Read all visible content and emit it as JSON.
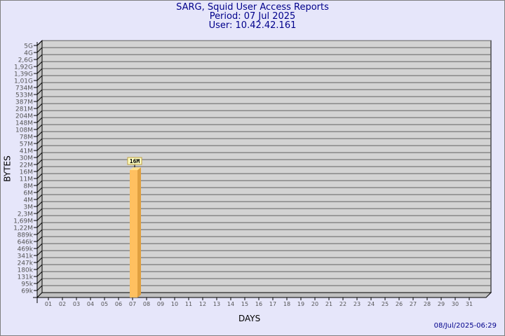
{
  "header": {
    "title": "SARG, Squid User Access Reports",
    "period": "Period: 07 Jul 2025",
    "user": "User: 10.42.42.161"
  },
  "footer": {
    "timestamp": "08/Jul/2025-06:29"
  },
  "chart_data": {
    "type": "bar",
    "title": "SARG, Squid User Access Reports",
    "xlabel": "DAYS",
    "ylabel": "BYTES",
    "y_scale": "log",
    "y_ticks": [
      "5G",
      "4G",
      "2,6G",
      "1,92G",
      "1,39G",
      "1,01G",
      "734M",
      "533M",
      "387M",
      "281M",
      "204M",
      "148M",
      "108M",
      "78M",
      "57M",
      "41M",
      "30M",
      "22M",
      "16M",
      "11M",
      "8M",
      "6M",
      "4M",
      "3M",
      "2,3M",
      "1,69M",
      "1,22M",
      "889k",
      "646k",
      "469k",
      "341k",
      "247k",
      "180k",
      "131k",
      "95k",
      "69k"
    ],
    "categories": [
      "01",
      "02",
      "03",
      "04",
      "05",
      "06",
      "07",
      "08",
      "09",
      "10",
      "11",
      "12",
      "13",
      "14",
      "15",
      "16",
      "17",
      "18",
      "19",
      "20",
      "21",
      "22",
      "23",
      "24",
      "25",
      "26",
      "27",
      "28",
      "29",
      "30",
      "31"
    ],
    "values": [
      {
        "day": "07",
        "value": "16M",
        "label": "16M"
      }
    ],
    "grid": true,
    "colors": {
      "bar": "#ffc060",
      "bar_side": "#e0a040",
      "bar_top": "#ffe090",
      "plot_bg": "#d3d3d3",
      "title": "#00008b"
    }
  }
}
